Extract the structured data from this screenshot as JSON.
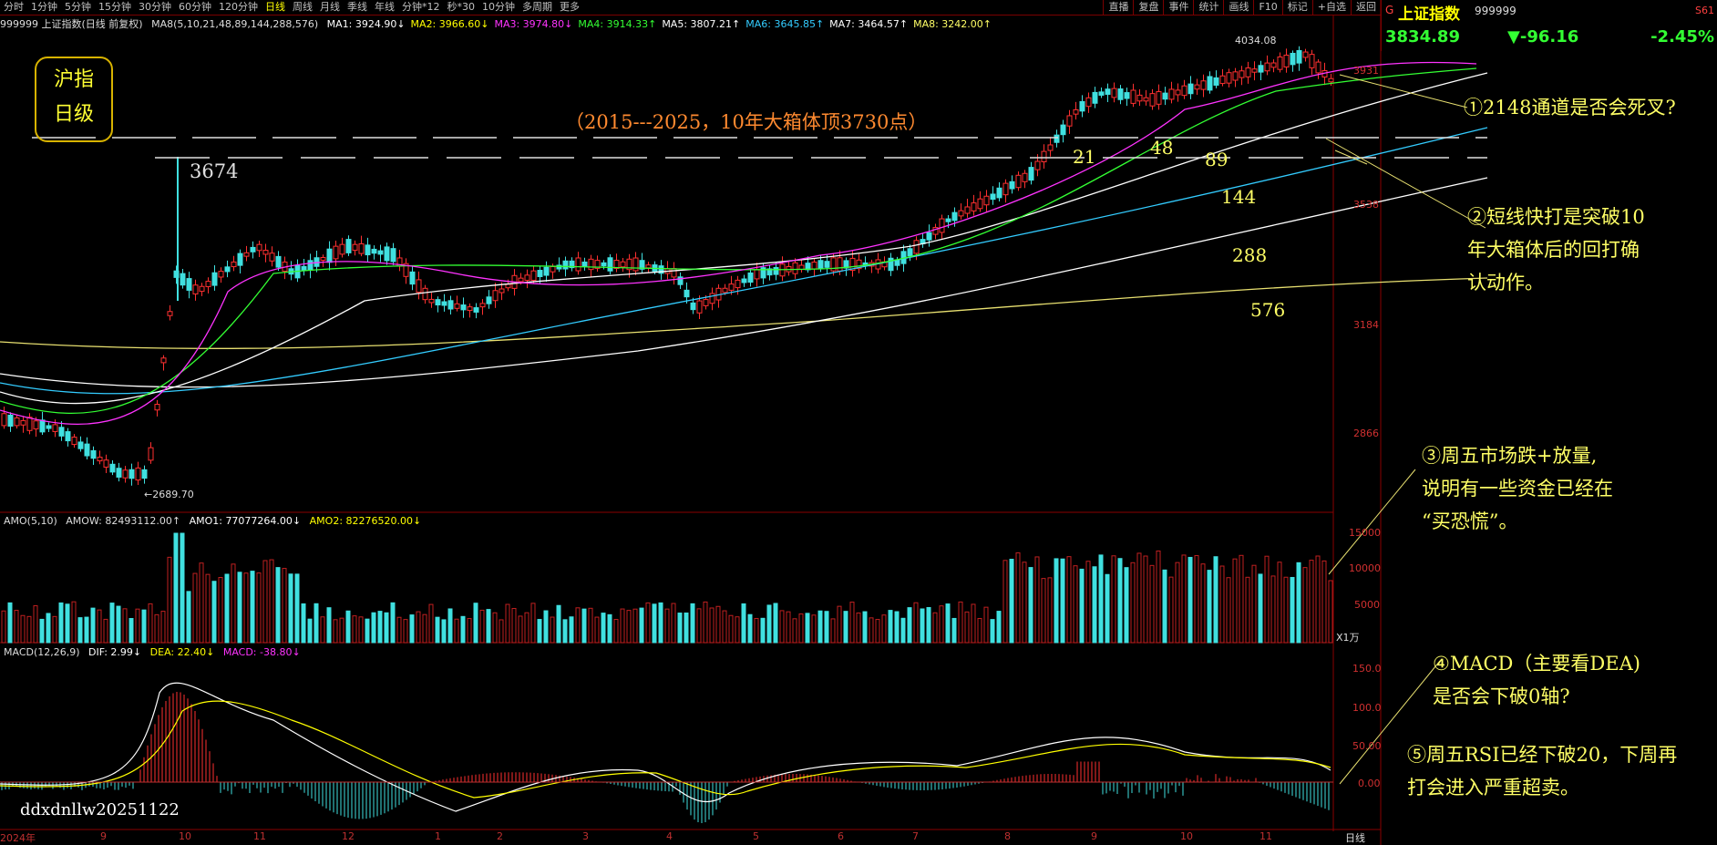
{
  "toolbar": {
    "periods": [
      "分时",
      "1分钟",
      "5分钟",
      "15分钟",
      "30分钟",
      "60分钟",
      "120分钟",
      "日线",
      "周线",
      "月线",
      "季线",
      "年线",
      "分钟*12",
      "秒*30",
      "10分钟",
      "多周期",
      "更多"
    ],
    "selected_period": "日线",
    "right_buttons": [
      "直播",
      "复盘",
      "事件",
      "统计",
      "画线",
      "F10",
      "标记",
      "+自选",
      "返回"
    ]
  },
  "ma_legend": {
    "title": "999999 上证指数(日线 前复权)",
    "params": "MA8(5,10,21,48,89,144,288,576)",
    "items": [
      {
        "label": "MA1: 3924.90↓",
        "color": "#ffffff"
      },
      {
        "label": "MA2: 3966.60↓",
        "color": "#ffff00"
      },
      {
        "label": "MA3: 3974.80↓",
        "color": "#ff33ff"
      },
      {
        "label": "MA4: 3914.33↑",
        "color": "#33ff33"
      },
      {
        "label": "MA5: 3807.21↑",
        "color": "#ffffff"
      },
      {
        "label": "MA6: 3645.85↑",
        "color": "#33ccff"
      },
      {
        "label": "MA7: 3464.57↑",
        "color": "#ffffff"
      },
      {
        "label": "MA8: 3242.00↑",
        "color": "#ffff66"
      }
    ]
  },
  "info_panel": {
    "tag": "G",
    "name": "上证指数",
    "code": "999999",
    "corner": "S61",
    "price": "3834.89",
    "change": "▼-96.16",
    "pct": "-2.45%"
  },
  "badge": {
    "line1": "沪指",
    "line2": "日级"
  },
  "price_axis": [
    "3931",
    "3538",
    "3184",
    "2866"
  ],
  "labels": {
    "box_top": "（2015---2025，10年大箱体顶3730点）",
    "peak": "3674",
    "high_2025": "4034.08",
    "low_2024": "←2689.70",
    "ma_numbers": [
      "21",
      "48",
      "89",
      "144",
      "288",
      "576"
    ],
    "watermark": "ddxdnllw20251122"
  },
  "amo": {
    "legend": [
      "AMO(5,10)",
      "AMOW: 82493112.00↑",
      "AMO1: 77077264.00↓",
      "AMO2: 82276520.00↓"
    ],
    "axis": [
      "15000",
      "10000",
      "5000"
    ],
    "unit": "X1万"
  },
  "macd": {
    "legend": [
      "MACD(12,26,9)",
      "DIF: 2.99↓",
      "DEA: 22.40↓",
      "MACD: -38.80↓"
    ],
    "axis": [
      "150.0",
      "100.0",
      "50.00",
      "0.00"
    ]
  },
  "x_axis": {
    "labels": [
      "2024年",
      "9",
      "10",
      "11",
      "12",
      "1",
      "2",
      "3",
      "4",
      "5",
      "6",
      "7",
      "8",
      "9",
      "10",
      "11"
    ],
    "period_label": "日线"
  },
  "notes": {
    "n1": "①2148通道是否会死叉?",
    "n2": "②短线快打是突破10\n年大箱体后的回打确\n认动作。",
    "n3": "③周五市场跌+放量,\n说明有一些资金已经在\n“买恐慌”。",
    "n4": "④MACD（主要看DEA)\n是否会下破0轴?",
    "n5": "⑤周五RSI已经下破20，下周再\n打会进入严重超卖。"
  }
}
